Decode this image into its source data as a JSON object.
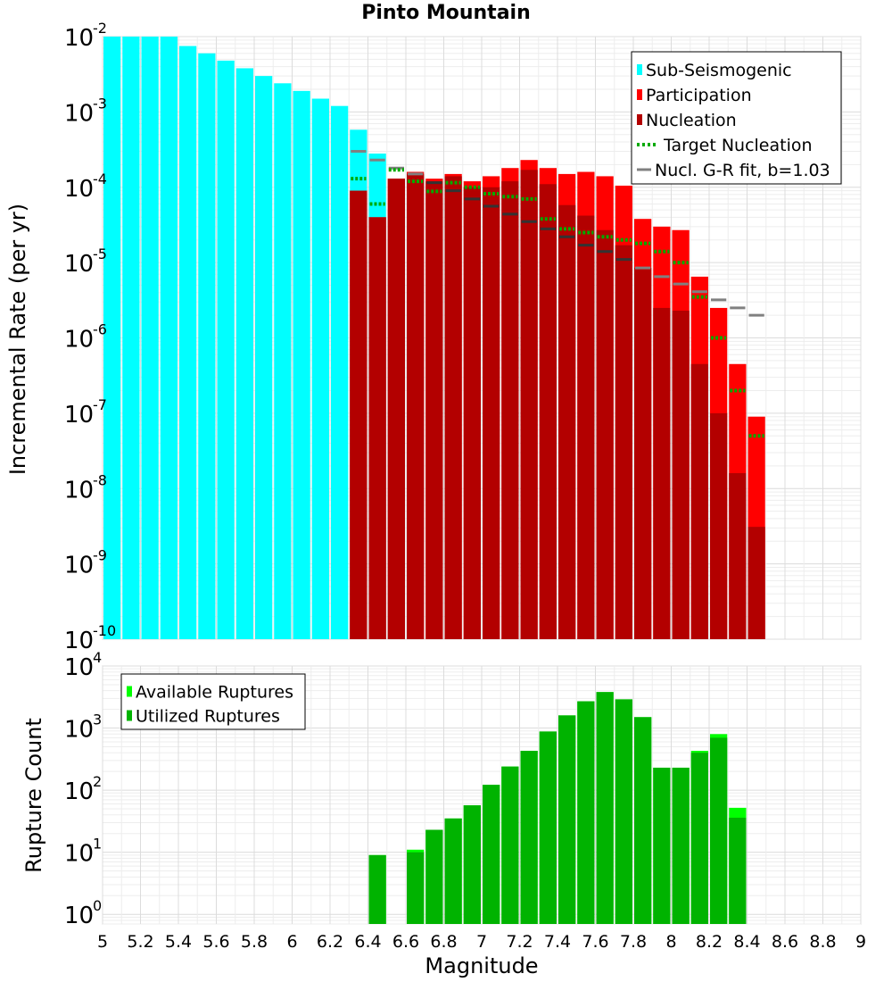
{
  "title": "Pinto Mountain",
  "colors": {
    "sub_seismogenic": "#00ffff",
    "participation": "#ff0000",
    "nucleation": "#b30000",
    "target_nucleation": "#00aa00",
    "gr_fit": "#808080",
    "available": "#00ff00",
    "utilized": "#00b300"
  },
  "chart_data": [
    {
      "type": "bar",
      "panel": "top",
      "title": "Pinto Mountain",
      "xlabel": "",
      "ylabel": "Incremental Rate (per yr)",
      "xlim": [
        5,
        9
      ],
      "ylim": [
        1e-10,
        0.01
      ],
      "yscale": "log",
      "ytick_exponents": [
        "-10",
        "-9",
        "-8",
        "-7",
        "-6",
        "-5",
        "-4",
        "-3",
        "-2"
      ],
      "grid": true,
      "legend_position": "top-right",
      "legend": [
        "Sub-Seismogenic",
        "Participation",
        "Nucleation",
        "Target Nucleation",
        "Nucl. G-R fit, b=1.03"
      ],
      "series": [
        {
          "name": "Sub-Seismogenic",
          "style": "bar",
          "x": [
            5.0,
            5.1,
            5.2,
            5.3,
            5.4,
            5.5,
            5.6,
            5.7,
            5.8,
            5.9,
            6.0,
            6.1,
            6.2,
            6.3,
            6.4,
            6.5
          ],
          "values": [
            0.01,
            0.01,
            0.01,
            0.01,
            0.0075,
            0.006,
            0.0048,
            0.0038,
            0.003,
            0.0024,
            0.0019,
            0.0015,
            0.0012,
            0.00058,
            0.00028,
            5e-05
          ]
        },
        {
          "name": "Participation",
          "style": "bar",
          "x": [
            6.35,
            6.45,
            6.55,
            6.65,
            6.75,
            6.85,
            6.95,
            7.05,
            7.15,
            7.25,
            7.35,
            7.45,
            7.55,
            7.65,
            7.75,
            7.85,
            7.95,
            8.05,
            8.15,
            8.25,
            8.35,
            8.45
          ],
          "values": [
            9e-05,
            4e-05,
            0.00013,
            0.00016,
            0.00013,
            0.00015,
            0.00012,
            0.00014,
            0.00018,
            0.00023,
            0.00018,
            0.00015,
            0.00016,
            0.00014,
            0.000105,
            3.8e-05,
            3e-05,
            2.7e-05,
            6.5e-06,
            2.5e-06,
            4.5e-07,
            9e-08
          ]
        },
        {
          "name": "Nucleation",
          "style": "bar",
          "x": [
            6.35,
            6.45,
            6.55,
            6.65,
            6.75,
            6.85,
            6.95,
            7.05,
            7.15,
            7.25,
            7.35,
            7.45,
            7.55,
            7.65,
            7.75,
            7.85,
            7.95,
            8.05,
            8.15,
            8.25,
            8.35,
            8.45
          ],
          "values": [
            9e-05,
            4e-05,
            0.00013,
            0.00015,
            0.00012,
            0.00014,
            0.0001,
            0.0001,
            0.00012,
            0.00017,
            0.00011,
            5.8e-05,
            4.2e-05,
            2.7e-05,
            1.7e-05,
            8.5e-06,
            2.5e-06,
            2.3e-06,
            4.5e-07,
            1e-07,
            1.6e-08,
            3.1e-09
          ]
        },
        {
          "name": "Target Nucleation",
          "style": "dotted-segment",
          "x": [
            6.35,
            6.45,
            6.55,
            6.65,
            6.75,
            6.85,
            6.95,
            7.05,
            7.15,
            7.25,
            7.35,
            7.45,
            7.55,
            7.65,
            7.75,
            7.85,
            7.95,
            8.05,
            8.15,
            8.25,
            8.35,
            8.45
          ],
          "values": [
            0.00013,
            6e-05,
            0.00017,
            0.00012,
            8.8e-05,
            0.000115,
            0.0001,
            8.2e-05,
            7.5e-05,
            7e-05,
            3.8e-05,
            2.8e-05,
            2.5e-05,
            2.2e-05,
            2e-05,
            1.8e-05,
            1.4e-05,
            1e-05,
            3.5e-06,
            1e-06,
            2e-07,
            5e-08
          ]
        },
        {
          "name": "Nucl. G-R fit, b=1.03",
          "style": "segment",
          "x": [
            6.35,
            6.45,
            6.55,
            6.65,
            6.75,
            6.85,
            6.95,
            7.05,
            7.15,
            7.25,
            7.35,
            7.45,
            7.55,
            7.65,
            7.75,
            7.85,
            7.95,
            8.05,
            8.15,
            8.25,
            8.35,
            8.45
          ],
          "values": [
            0.0003,
            0.00023,
            0.00018,
            0.00015,
            0.000115,
            9e-05,
            7e-05,
            5.6e-05,
            4.4e-05,
            3.5e-05,
            2.8e-05,
            2.2e-05,
            1.7e-05,
            1.4e-05,
            1.1e-05,
            8.5e-06,
            6.5e-06,
            5.2e-06,
            4.1e-06,
            3.2e-06,
            2.5e-06,
            2e-06
          ]
        }
      ]
    },
    {
      "type": "bar",
      "panel": "bottom",
      "xlabel": "Magnitude",
      "ylabel": "Rupture Count",
      "xlim": [
        5,
        9
      ],
      "ylim": [
        0.7,
        10000
      ],
      "yscale": "log",
      "ytick_exponents": [
        "0",
        "1",
        "2",
        "3",
        "4"
      ],
      "xticks": [
        "5",
        "5.2",
        "5.4",
        "5.6",
        "5.8",
        "6",
        "6.2",
        "6.4",
        "6.6",
        "6.8",
        "7",
        "7.2",
        "7.4",
        "7.6",
        "7.8",
        "8",
        "8.2",
        "8.4",
        "8.6",
        "8.8",
        "9"
      ],
      "grid": true,
      "legend_position": "top-left",
      "legend": [
        "Available Ruptures",
        "Utilized Ruptures"
      ],
      "series": [
        {
          "name": "Available Ruptures",
          "x": [
            6.45,
            6.65,
            6.75,
            6.85,
            6.95,
            7.05,
            7.15,
            7.25,
            7.35,
            7.45,
            7.55,
            7.65,
            7.75,
            7.85,
            7.95,
            8.05,
            8.15,
            8.25,
            8.35,
            8.45
          ],
          "values": [
            9,
            11,
            23,
            35,
            57,
            122,
            240,
            430,
            880,
            1600,
            2700,
            3800,
            2900,
            1500,
            230,
            230,
            430,
            800,
            52,
            0
          ]
        },
        {
          "name": "Utilized Ruptures",
          "x": [
            6.45,
            6.65,
            6.75,
            6.85,
            6.95,
            7.05,
            7.15,
            7.25,
            7.35,
            7.45,
            7.55,
            7.65,
            7.75,
            7.85,
            7.95,
            8.05,
            8.15,
            8.25,
            8.35,
            8.45
          ],
          "values": [
            9,
            10,
            23,
            35,
            57,
            122,
            240,
            430,
            880,
            1600,
            2700,
            3800,
            2900,
            1500,
            230,
            230,
            400,
            700,
            36,
            0
          ]
        }
      ]
    }
  ]
}
